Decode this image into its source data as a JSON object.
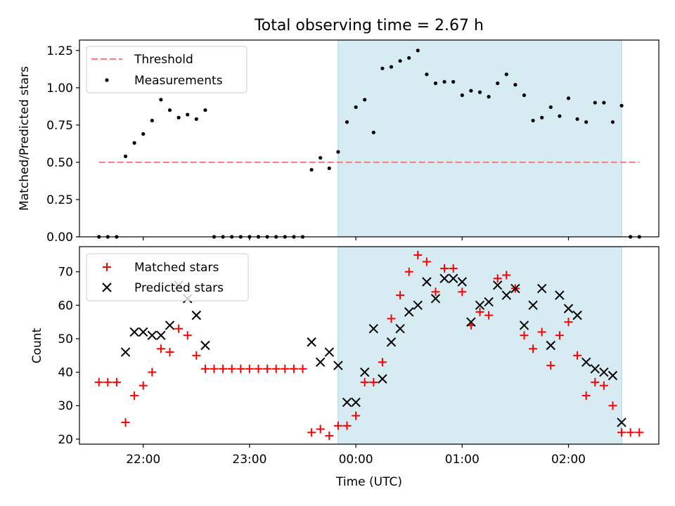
{
  "title": "Total observing time = 2.67 h",
  "x_ticks": [
    "22:00",
    "23:00",
    "00:00",
    "01:00",
    "02:00"
  ],
  "colors": {
    "threshold": "#ff7f7f",
    "measurement": "#000000",
    "matched": "#ff0000",
    "predicted": "#000000",
    "shade": "#add8e6"
  },
  "chart_data": [
    {
      "type": "scatter",
      "ylabel": "Matched/Predicted stars",
      "ylim": [
        0,
        1.32
      ],
      "yticks": [
        "0.00",
        "0.25",
        "0.50",
        "0.75",
        "1.00",
        "1.25"
      ],
      "grid": false,
      "legend_position": "upper left",
      "legend": [
        "Threshold",
        "Measurements"
      ],
      "shaded_interval": {
        "start": "23:50",
        "end": "02:30"
      },
      "threshold": {
        "name": "Threshold",
        "value": 0.5,
        "x_start": "21:35",
        "x_end": "02:40"
      },
      "series": [
        {
          "name": "Measurements",
          "points": [
            [
              "21:35",
              0.0
            ],
            [
              "21:40",
              0.0
            ],
            [
              "21:45",
              0.0
            ],
            [
              "21:50",
              0.54
            ],
            [
              "21:55",
              0.63
            ],
            [
              "22:00",
              0.69
            ],
            [
              "22:05",
              0.78
            ],
            [
              "22:10",
              0.92
            ],
            [
              "22:15",
              0.85
            ],
            [
              "22:20",
              0.8
            ],
            [
              "22:25",
              0.82
            ],
            [
              "22:30",
              0.79
            ],
            [
              "22:35",
              0.85
            ],
            [
              "22:40",
              0.0
            ],
            [
              "22:45",
              0.0
            ],
            [
              "22:50",
              0.0
            ],
            [
              "22:55",
              0.0
            ],
            [
              "23:00",
              0.0
            ],
            [
              "23:05",
              0.0
            ],
            [
              "23:10",
              0.0
            ],
            [
              "23:15",
              0.0
            ],
            [
              "23:20",
              0.0
            ],
            [
              "23:25",
              0.0
            ],
            [
              "23:30",
              0.0
            ],
            [
              "23:35",
              0.45
            ],
            [
              "23:40",
              0.53
            ],
            [
              "23:45",
              0.46
            ],
            [
              "23:50",
              0.57
            ],
            [
              "23:55",
              0.77
            ],
            [
              "00:00",
              0.87
            ],
            [
              "00:05",
              0.92
            ],
            [
              "00:10",
              0.7
            ],
            [
              "00:15",
              1.13
            ],
            [
              "00:20",
              1.14
            ],
            [
              "00:25",
              1.18
            ],
            [
              "00:30",
              1.2
            ],
            [
              "00:35",
              1.25
            ],
            [
              "00:40",
              1.09
            ],
            [
              "00:45",
              1.03
            ],
            [
              "00:50",
              1.04
            ],
            [
              "00:55",
              1.04
            ],
            [
              "01:00",
              0.95
            ],
            [
              "01:05",
              0.98
            ],
            [
              "01:10",
              0.97
            ],
            [
              "01:15",
              0.94
            ],
            [
              "01:20",
              1.03
            ],
            [
              "01:25",
              1.09
            ],
            [
              "01:30",
              1.02
            ],
            [
              "01:35",
              0.95
            ],
            [
              "01:40",
              0.78
            ],
            [
              "01:45",
              0.8
            ],
            [
              "01:50",
              0.87
            ],
            [
              "01:55",
              0.81
            ],
            [
              "02:00",
              0.93
            ],
            [
              "02:05",
              0.79
            ],
            [
              "02:10",
              0.77
            ],
            [
              "02:15",
              0.9
            ],
            [
              "02:20",
              0.9
            ],
            [
              "02:25",
              0.77
            ],
            [
              "02:30",
              0.88
            ],
            [
              "02:35",
              0.0
            ],
            [
              "02:40",
              0.0
            ]
          ]
        }
      ]
    },
    {
      "type": "scatter",
      "xlabel": "Time (UTC)",
      "ylabel": "Count",
      "ylim": [
        18.5,
        77.5
      ],
      "yticks": [
        "20",
        "30",
        "40",
        "50",
        "60",
        "70"
      ],
      "grid": false,
      "legend_position": "upper left",
      "legend": [
        "Matched stars",
        "Predicted stars"
      ],
      "shaded_interval": {
        "start": "23:50",
        "end": "02:30"
      },
      "series": [
        {
          "name": "Matched stars",
          "points": [
            [
              "21:35",
              37
            ],
            [
              "21:40",
              37
            ],
            [
              "21:45",
              37
            ],
            [
              "21:50",
              25
            ],
            [
              "21:55",
              33
            ],
            [
              "22:00",
              36
            ],
            [
              "22:05",
              40
            ],
            [
              "22:10",
              47
            ],
            [
              "22:15",
              46
            ],
            [
              "22:20",
              53
            ],
            [
              "22:25",
              51
            ],
            [
              "22:30",
              45
            ],
            [
              "22:35",
              41
            ],
            [
              "22:40",
              41
            ],
            [
              "22:45",
              41
            ],
            [
              "22:50",
              41
            ],
            [
              "22:55",
              41
            ],
            [
              "23:00",
              41
            ],
            [
              "23:05",
              41
            ],
            [
              "23:10",
              41
            ],
            [
              "23:15",
              41
            ],
            [
              "23:20",
              41
            ],
            [
              "23:25",
              41
            ],
            [
              "23:30",
              41
            ],
            [
              "23:35",
              22
            ],
            [
              "23:40",
              23
            ],
            [
              "23:45",
              21
            ],
            [
              "23:50",
              24
            ],
            [
              "23:55",
              24
            ],
            [
              "00:00",
              27
            ],
            [
              "00:05",
              37
            ],
            [
              "00:10",
              37
            ],
            [
              "00:15",
              43
            ],
            [
              "00:20",
              56
            ],
            [
              "00:25",
              63
            ],
            [
              "00:30",
              70
            ],
            [
              "00:35",
              75
            ],
            [
              "00:40",
              73
            ],
            [
              "00:45",
              64
            ],
            [
              "00:50",
              71
            ],
            [
              "00:55",
              71
            ],
            [
              "01:00",
              64
            ],
            [
              "01:05",
              54
            ],
            [
              "01:10",
              58
            ],
            [
              "01:15",
              57
            ],
            [
              "01:20",
              68
            ],
            [
              "01:25",
              69
            ],
            [
              "01:30",
              65
            ],
            [
              "01:35",
              51
            ],
            [
              "01:40",
              47
            ],
            [
              "01:45",
              52
            ],
            [
              "01:50",
              42
            ],
            [
              "01:55",
              51
            ],
            [
              "02:00",
              55
            ],
            [
              "02:05",
              45
            ],
            [
              "02:10",
              33
            ],
            [
              "02:15",
              37
            ],
            [
              "02:20",
              36
            ],
            [
              "02:25",
              30
            ],
            [
              "02:30",
              22
            ],
            [
              "02:35",
              22
            ],
            [
              "02:40",
              22
            ]
          ]
        },
        {
          "name": "Predicted stars",
          "points": [
            [
              "21:50",
              46
            ],
            [
              "21:55",
              52
            ],
            [
              "22:00",
              52
            ],
            [
              "22:05",
              51
            ],
            [
              "22:10",
              51
            ],
            [
              "22:15",
              54
            ],
            [
              "22:20",
              66
            ],
            [
              "22:25",
              62
            ],
            [
              "22:30",
              57
            ],
            [
              "22:35",
              48
            ],
            [
              "23:35",
              49
            ],
            [
              "23:40",
              43
            ],
            [
              "23:45",
              46
            ],
            [
              "23:50",
              42
            ],
            [
              "23:55",
              31
            ],
            [
              "00:00",
              31
            ],
            [
              "00:05",
              40
            ],
            [
              "00:10",
              53
            ],
            [
              "00:15",
              38
            ],
            [
              "00:20",
              49
            ],
            [
              "00:25",
              53
            ],
            [
              "00:30",
              58
            ],
            [
              "00:35",
              60
            ],
            [
              "00:40",
              67
            ],
            [
              "00:45",
              62
            ],
            [
              "00:50",
              68
            ],
            [
              "00:55",
              68
            ],
            [
              "01:00",
              67
            ],
            [
              "01:05",
              55
            ],
            [
              "01:10",
              60
            ],
            [
              "01:15",
              61
            ],
            [
              "01:20",
              66
            ],
            [
              "01:25",
              63
            ],
            [
              "01:30",
              65
            ],
            [
              "01:35",
              54
            ],
            [
              "01:40",
              60
            ],
            [
              "01:45",
              65
            ],
            [
              "01:50",
              48
            ],
            [
              "01:55",
              63
            ],
            [
              "02:00",
              59
            ],
            [
              "02:05",
              57
            ],
            [
              "02:10",
              43
            ],
            [
              "02:15",
              41
            ],
            [
              "02:20",
              40
            ],
            [
              "02:25",
              39
            ],
            [
              "02:30",
              25
            ]
          ]
        }
      ]
    }
  ]
}
